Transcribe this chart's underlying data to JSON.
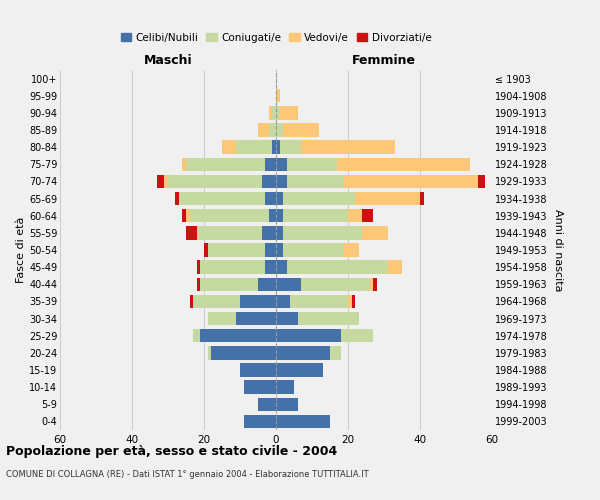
{
  "age_groups": [
    "0-4",
    "5-9",
    "10-14",
    "15-19",
    "20-24",
    "25-29",
    "30-34",
    "35-39",
    "40-44",
    "45-49",
    "50-54",
    "55-59",
    "60-64",
    "65-69",
    "70-74",
    "75-79",
    "80-84",
    "85-89",
    "90-94",
    "95-99",
    "100+"
  ],
  "birth_years": [
    "1999-2003",
    "1994-1998",
    "1989-1993",
    "1984-1988",
    "1979-1983",
    "1974-1978",
    "1969-1973",
    "1964-1968",
    "1959-1963",
    "1954-1958",
    "1949-1953",
    "1944-1948",
    "1939-1943",
    "1934-1938",
    "1929-1933",
    "1924-1928",
    "1919-1923",
    "1914-1918",
    "1909-1913",
    "1904-1908",
    "≤ 1903"
  ],
  "maschi": {
    "celibi": [
      9,
      5,
      9,
      10,
      18,
      21,
      11,
      10,
      5,
      3,
      3,
      4,
      2,
      3,
      4,
      3,
      1,
      0,
      0,
      0,
      0
    ],
    "coniugati": [
      0,
      0,
      0,
      0,
      1,
      2,
      8,
      13,
      16,
      18,
      16,
      18,
      22,
      24,
      26,
      22,
      10,
      2,
      1,
      0,
      0
    ],
    "vedovi": [
      0,
      0,
      0,
      0,
      0,
      0,
      0,
      0,
      0,
      0,
      0,
      0,
      1,
      0,
      1,
      1,
      4,
      3,
      1,
      0,
      0
    ],
    "divorziati": [
      0,
      0,
      0,
      0,
      0,
      0,
      0,
      1,
      1,
      1,
      1,
      3,
      1,
      1,
      2,
      0,
      0,
      0,
      0,
      0,
      0
    ]
  },
  "femmine": {
    "nubili": [
      15,
      6,
      5,
      13,
      15,
      18,
      6,
      4,
      7,
      3,
      2,
      2,
      2,
      2,
      3,
      3,
      1,
      0,
      0,
      0,
      0
    ],
    "coniugate": [
      0,
      0,
      0,
      0,
      3,
      9,
      17,
      16,
      19,
      28,
      17,
      22,
      18,
      20,
      16,
      14,
      6,
      2,
      1,
      0,
      0
    ],
    "vedove": [
      0,
      0,
      0,
      0,
      0,
      0,
      0,
      1,
      1,
      4,
      4,
      7,
      4,
      18,
      37,
      37,
      26,
      10,
      5,
      1,
      0
    ],
    "divorziate": [
      0,
      0,
      0,
      0,
      0,
      0,
      0,
      1,
      1,
      0,
      0,
      0,
      3,
      1,
      2,
      0,
      0,
      0,
      0,
      0,
      0
    ]
  },
  "colors": {
    "celibi": "#4472a8",
    "coniugati": "#c5d9a0",
    "vedovi": "#fcc878",
    "divorziati": "#cc1111"
  },
  "xlim": 60,
  "title": "Popolazione per età, sesso e stato civile - 2004",
  "subtitle": "COMUNE DI COLLAGNA (RE) - Dati ISTAT 1° gennaio 2004 - Elaborazione TUTTITALIA.IT",
  "ylabel_left": "Fasce di età",
  "ylabel_right": "Anni di nascita",
  "xlabel_left": "Maschi",
  "xlabel_right": "Femmine",
  "legend_labels": [
    "Celibi/Nubili",
    "Coniugati/e",
    "Vedovi/e",
    "Divorziati/e"
  ],
  "background_color": "#f0f0f0"
}
